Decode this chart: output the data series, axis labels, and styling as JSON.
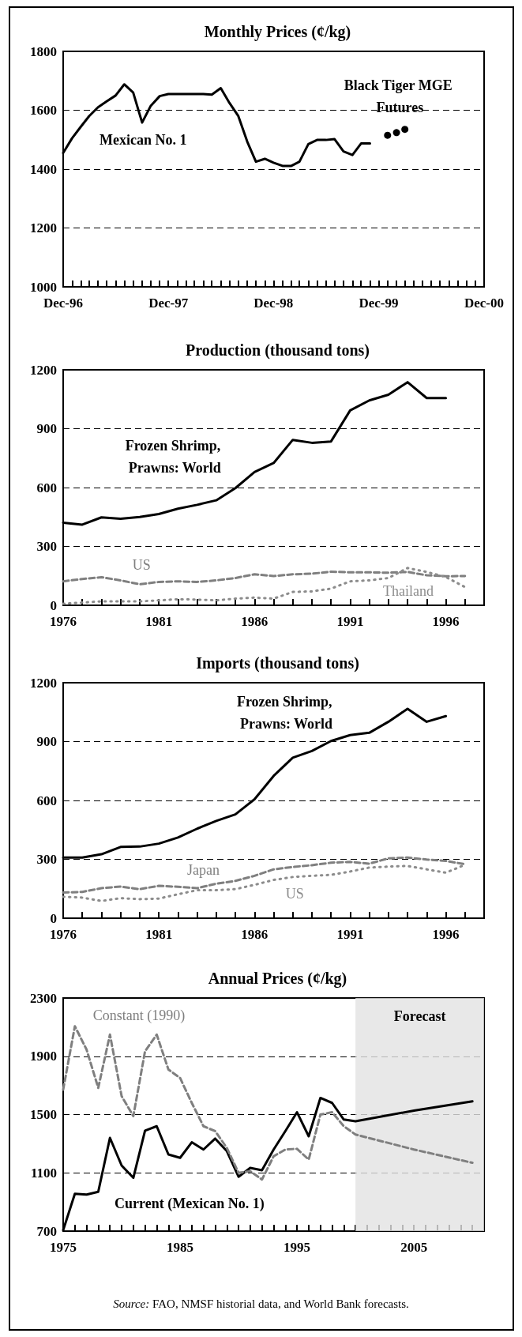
{
  "chart_data": [
    {
      "type": "line",
      "title": "Monthly Prices (¢/kg)",
      "xlim": [
        "1996-12",
        "2000-12"
      ],
      "ylim": [
        1000,
        1800
      ],
      "yticks": [
        1000,
        1200,
        1400,
        1600,
        1800
      ],
      "grid": "y",
      "marker": "none",
      "xticks": [
        {
          "value": "1996-12",
          "label": "Dec-96"
        },
        {
          "value": "1997-01",
          "label": null
        },
        {
          "value": "1997-02",
          "label": null
        },
        {
          "value": "1997-03",
          "label": null
        },
        {
          "value": "1997-04",
          "label": null
        },
        {
          "value": "1997-05",
          "label": null
        },
        {
          "value": "1997-06",
          "label": null
        },
        {
          "value": "1997-07",
          "label": null
        },
        {
          "value": "1997-08",
          "label": null
        },
        {
          "value": "1997-09",
          "label": null
        },
        {
          "value": "1997-10",
          "label": null
        },
        {
          "value": "1997-11",
          "label": null
        },
        {
          "value": "1997-12",
          "label": "Dec-97"
        },
        {
          "value": "1998-01",
          "label": null
        },
        {
          "value": "1998-02",
          "label": null
        },
        {
          "value": "1998-03",
          "label": null
        },
        {
          "value": "1998-04",
          "label": null
        },
        {
          "value": "1998-05",
          "label": null
        },
        {
          "value": "1998-06",
          "label": null
        },
        {
          "value": "1998-07",
          "label": null
        },
        {
          "value": "1998-08",
          "label": null
        },
        {
          "value": "1998-09",
          "label": null
        },
        {
          "value": "1998-10",
          "label": null
        },
        {
          "value": "1998-11",
          "label": null
        },
        {
          "value": "1998-12",
          "label": "Dec-98"
        },
        {
          "value": "1999-01",
          "label": null
        },
        {
          "value": "1999-02",
          "label": null
        },
        {
          "value": "1999-03",
          "label": null
        },
        {
          "value": "1999-04",
          "label": null
        },
        {
          "value": "1999-05",
          "label": null
        },
        {
          "value": "1999-06",
          "label": null
        },
        {
          "value": "1999-07",
          "label": null
        },
        {
          "value": "1999-08",
          "label": null
        },
        {
          "value": "1999-09",
          "label": null
        },
        {
          "value": "1999-10",
          "label": null
        },
        {
          "value": "1999-11",
          "label": null
        },
        {
          "value": "1999-12",
          "label": "Dec-99"
        },
        {
          "value": "2000-01",
          "label": null
        },
        {
          "value": "2000-02",
          "label": null
        },
        {
          "value": "2000-03",
          "label": null
        },
        {
          "value": "2000-04",
          "label": null
        },
        {
          "value": "2000-05",
          "label": null
        },
        {
          "value": "2000-06",
          "label": null
        },
        {
          "value": "2000-07",
          "label": null
        },
        {
          "value": "2000-08",
          "label": null
        },
        {
          "value": "2000-09",
          "label": null
        },
        {
          "value": "2000-10",
          "label": null
        },
        {
          "value": "2000-11",
          "label": null
        },
        {
          "value": "2000-12",
          "label": "Dec-00"
        }
      ],
      "series": [
        {
          "name": "Mexican No. 1",
          "color": "#000000",
          "line_style": "solid",
          "x": [
            "1996-12",
            "1997-01",
            "1997-02",
            "1997-03",
            "1997-04",
            "1997-05",
            "1997-06",
            "1997-07",
            "1997-08",
            "1997-09",
            "1997-10",
            "1997-11",
            "1997-12",
            "1998-01",
            "1998-02",
            "1998-03",
            "1998-04",
            "1998-05",
            "1998-06",
            "1998-07",
            "1998-08",
            "1998-09",
            "1998-10",
            "1998-11",
            "1998-12",
            "1999-01",
            "1999-02",
            "1999-03",
            "1999-04",
            "1999-05",
            "1999-06",
            "1999-07",
            "1999-08",
            "1999-09",
            "1999-10",
            "1999-11"
          ],
          "values": [
            1455,
            1505,
            1545,
            1580,
            1610,
            1630,
            1650,
            1688,
            1660,
            1558,
            1615,
            1648,
            1655,
            1655,
            1655,
            1655,
            1655,
            1653,
            1675,
            1625,
            1580,
            1493,
            1425,
            1435,
            1422,
            1411,
            1411,
            1425,
            1485,
            1499,
            1499,
            1502,
            1460,
            1448,
            1487,
            1487
          ]
        },
        {
          "name": "Black Tiger MGE Futures",
          "type": "scatter",
          "marker": "circle",
          "color": "#000000",
          "x": [
            "2000-01",
            "2000-02",
            "2000-03"
          ],
          "values": [
            1515,
            1524,
            1535
          ]
        }
      ]
    },
    {
      "type": "line",
      "title": "Production (thousand tons)",
      "xlim": [
        1976,
        1998
      ],
      "ylim": [
        0,
        1200
      ],
      "yticks": [
        0,
        300,
        600,
        900,
        1200
      ],
      "grid": "y",
      "marker": "none",
      "xticks": [
        1976,
        {
          "value": 1977,
          "label": null
        },
        {
          "value": 1978,
          "label": null
        },
        {
          "value": 1979,
          "label": null
        },
        {
          "value": 1980,
          "label": null
        },
        1981,
        {
          "value": 1982,
          "label": null
        },
        {
          "value": 1983,
          "label": null
        },
        {
          "value": 1984,
          "label": null
        },
        {
          "value": 1985,
          "label": null
        },
        1986,
        {
          "value": 1987,
          "label": null
        },
        {
          "value": 1988,
          "label": null
        },
        {
          "value": 1989,
          "label": null
        },
        {
          "value": 1990,
          "label": null
        },
        1991,
        {
          "value": 1992,
          "label": null
        },
        {
          "value": 1993,
          "label": null
        },
        {
          "value": 1994,
          "label": null
        },
        {
          "value": 1995,
          "label": null
        },
        1996,
        {
          "value": 1997,
          "label": null
        }
      ],
      "series": [
        {
          "name": "Frozen Shrimp, Prawns: World",
          "color": "#000000",
          "line_style": "solid",
          "x": [
            1976,
            1977,
            1978,
            1979,
            1980,
            1981,
            1982,
            1983,
            1984,
            1985,
            1986,
            1987,
            1988,
            1989,
            1990,
            1991,
            1992,
            1993,
            1994,
            1995,
            1996
          ],
          "values": [
            421,
            411,
            448,
            441,
            450,
            465,
            492,
            512,
            535,
            597,
            679,
            725,
            843,
            828,
            835,
            993,
            1044,
            1073,
            1137,
            1056,
            1056
          ]
        },
        {
          "name": "US",
          "color": "#7f7f7f",
          "line_style": "dashed",
          "x": [
            1976,
            1977,
            1978,
            1979,
            1980,
            1981,
            1982,
            1983,
            1984,
            1985,
            1986,
            1987,
            1988,
            1989,
            1990,
            1991,
            1992,
            1993,
            1994,
            1995,
            1996,
            1997
          ],
          "values": [
            122,
            134,
            143,
            127,
            107,
            119,
            122,
            119,
            127,
            139,
            158,
            149,
            158,
            161,
            171,
            168,
            168,
            166,
            170,
            153,
            148,
            149
          ]
        },
        {
          "name": "Thailand",
          "color": "#8c8c8c",
          "line_style": "dotted",
          "x": [
            1976,
            1977,
            1978,
            1979,
            1980,
            1981,
            1982,
            1983,
            1984,
            1985,
            1986,
            1987,
            1988,
            1989,
            1990,
            1991,
            1992,
            1993,
            1994,
            1995,
            1996,
            1997
          ],
          "values": [
            8,
            14,
            20,
            20,
            20,
            25,
            31,
            29,
            25,
            34,
            39,
            34,
            68,
            71,
            85,
            122,
            127,
            139,
            190,
            170,
            144,
            93
          ]
        }
      ]
    },
    {
      "type": "line",
      "title": "Imports (thousand tons)",
      "xlim": [
        1976,
        1998
      ],
      "ylim": [
        0,
        1200
      ],
      "yticks": [
        0,
        300,
        600,
        900,
        1200
      ],
      "grid": "y",
      "marker": "none",
      "xticks": [
        1976,
        {
          "value": 1977,
          "label": null
        },
        {
          "value": 1978,
          "label": null
        },
        {
          "value": 1979,
          "label": null
        },
        {
          "value": 1980,
          "label": null
        },
        1981,
        {
          "value": 1982,
          "label": null
        },
        {
          "value": 1983,
          "label": null
        },
        {
          "value": 1984,
          "label": null
        },
        {
          "value": 1985,
          "label": null
        },
        1986,
        {
          "value": 1987,
          "label": null
        },
        {
          "value": 1988,
          "label": null
        },
        {
          "value": 1989,
          "label": null
        },
        {
          "value": 1990,
          "label": null
        },
        1991,
        {
          "value": 1992,
          "label": null
        },
        {
          "value": 1993,
          "label": null
        },
        {
          "value": 1994,
          "label": null
        },
        {
          "value": 1995,
          "label": null
        },
        1996,
        {
          "value": 1997,
          "label": null
        }
      ],
      "series": [
        {
          "name": "Frozen Shrimp, Prawns: World",
          "color": "#000000",
          "line_style": "solid",
          "x": [
            1976,
            1977,
            1978,
            1979,
            1980,
            1981,
            1982,
            1983,
            1984,
            1985,
            1986,
            1987,
            1988,
            1989,
            1990,
            1991,
            1992,
            1993,
            1994,
            1995,
            1996
          ],
          "values": [
            309,
            309,
            326,
            363,
            365,
            380,
            411,
            456,
            496,
            529,
            606,
            725,
            818,
            852,
            903,
            933,
            945,
            1001,
            1067,
            1001,
            1030
          ]
        },
        {
          "name": "Japan",
          "color": "#7f7f7f",
          "line_style": "dashed",
          "x": [
            1976,
            1977,
            1978,
            1979,
            1980,
            1981,
            1982,
            1983,
            1984,
            1985,
            1986,
            1987,
            1988,
            1989,
            1990,
            1991,
            1992,
            1993,
            1994,
            1995,
            1996,
            1997
          ],
          "values": [
            131,
            134,
            153,
            161,
            148,
            165,
            160,
            153,
            176,
            190,
            216,
            249,
            261,
            270,
            283,
            287,
            278,
            305,
            309,
            299,
            292,
            275
          ]
        },
        {
          "name": "US",
          "color": "#8c8c8c",
          "line_style": "dotted",
          "x": [
            1976,
            1977,
            1978,
            1979,
            1980,
            1981,
            1982,
            1983,
            1984,
            1985,
            1986,
            1987,
            1988,
            1989,
            1990,
            1991,
            1992,
            1993,
            1994,
            1995,
            1996,
            1997
          ],
          "values": [
            109,
            105,
            88,
            102,
            97,
            100,
            122,
            143,
            143,
            148,
            170,
            195,
            210,
            216,
            221,
            238,
            258,
            263,
            266,
            249,
            232,
            272
          ]
        }
      ]
    },
    {
      "type": "line",
      "title": "Annual Prices (¢/kg)",
      "xlim": [
        1975,
        2011
      ],
      "ylim": [
        700,
        2300
      ],
      "yticks": [
        700,
        1100,
        1500,
        1900,
        2300
      ],
      "grid": "y",
      "marker": "none",
      "xticks": [
        1975,
        {
          "value": 1976,
          "label": null
        },
        {
          "value": 1977,
          "label": null
        },
        {
          "value": 1978,
          "label": null
        },
        {
          "value": 1979,
          "label": null
        },
        {
          "value": 1980,
          "label": null
        },
        {
          "value": 1981,
          "label": null
        },
        {
          "value": 1982,
          "label": null
        },
        {
          "value": 1983,
          "label": null
        },
        {
          "value": 1984,
          "label": null
        },
        1985,
        {
          "value": 1986,
          "label": null
        },
        {
          "value": 1987,
          "label": null
        },
        {
          "value": 1988,
          "label": null
        },
        {
          "value": 1989,
          "label": null
        },
        {
          "value": 1990,
          "label": null
        },
        {
          "value": 1991,
          "label": null
        },
        {
          "value": 1992,
          "label": null
        },
        {
          "value": 1993,
          "label": null
        },
        {
          "value": 1994,
          "label": null
        },
        1995,
        {
          "value": 1996,
          "label": null
        },
        {
          "value": 1997,
          "label": null
        },
        {
          "value": 1998,
          "label": null
        },
        {
          "value": 1999,
          "label": null
        },
        {
          "value": 2000,
          "label": null
        },
        {
          "value": 2001,
          "label": null
        },
        {
          "value": 2002,
          "label": null
        },
        {
          "value": 2003,
          "label": null
        },
        {
          "value": 2004,
          "label": null
        },
        2005,
        {
          "value": 2006,
          "label": null
        },
        {
          "value": 2007,
          "label": null
        },
        {
          "value": 2008,
          "label": null
        },
        {
          "value": 2009,
          "label": null
        },
        {
          "value": 2010,
          "label": null
        }
      ],
      "bands": [
        {
          "axis": "x",
          "from": 2000,
          "to": 2011,
          "label": "Forecast",
          "color": "#e2e2e2"
        }
      ],
      "annotations": [
        "Source: FAO, NMSF historial data, and World Bank forecasts."
      ],
      "series": [
        {
          "name": "Current (Mexican No. 1)",
          "color": "#000000",
          "line_style": "solid",
          "x": [
            1975,
            1976,
            1977,
            1978,
            1979,
            1980,
            1981,
            1982,
            1983,
            1984,
            1985,
            1986,
            1987,
            1988,
            1989,
            1990,
            1991,
            1992,
            1993,
            1994,
            1995,
            1996,
            1997,
            1998,
            1999,
            2000,
            2005,
            2010
          ],
          "values": [
            707,
            956,
            951,
            970,
            1340,
            1150,
            1066,
            1390,
            1420,
            1226,
            1203,
            1310,
            1260,
            1335,
            1249,
            1073,
            1134,
            1118,
            1260,
            1386,
            1516,
            1351,
            1614,
            1580,
            1466,
            1454,
            1527,
            1591
          ]
        },
        {
          "name": "Constant (1990)",
          "color": "#7f7f7f",
          "line_style": "dashed",
          "x": [
            1975,
            1976,
            1977,
            1978,
            1979,
            1980,
            1981,
            1982,
            1983,
            1984,
            1985,
            1986,
            1987,
            1988,
            1989,
            1990,
            1991,
            1992,
            1993,
            1994,
            1995,
            1996,
            1997,
            1998,
            1999,
            2000,
            2005,
            2010
          ],
          "values": [
            1671,
            2106,
            1946,
            1683,
            2049,
            1626,
            1489,
            1934,
            2049,
            1809,
            1751,
            1580,
            1420,
            1386,
            1271,
            1100,
            1111,
            1054,
            1214,
            1260,
            1265,
            1191,
            1500,
            1516,
            1420,
            1363,
            1260,
            1169
          ]
        }
      ]
    }
  ]
}
